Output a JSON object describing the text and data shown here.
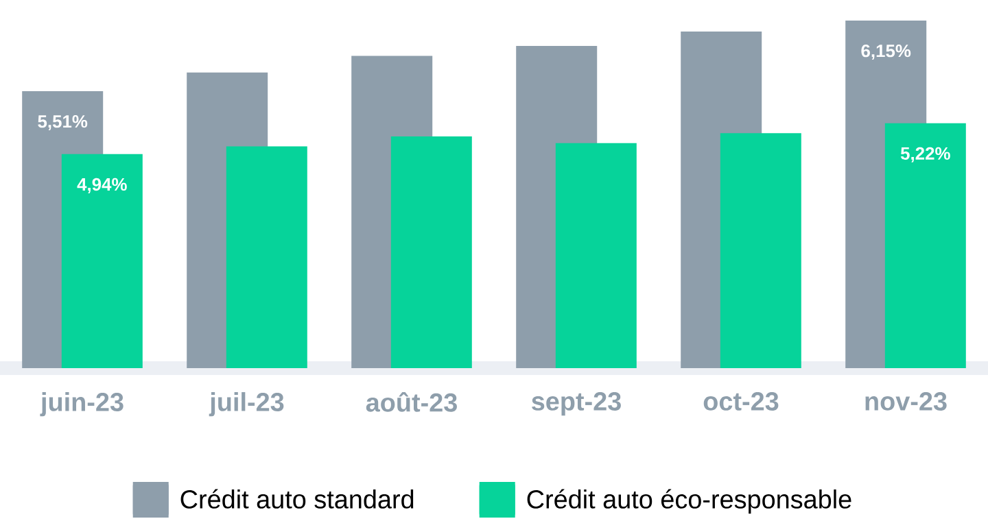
{
  "chart_data": {
    "type": "bar",
    "categories": [
      "juin-23",
      "juil-23",
      "août-23",
      "sept-23",
      "oct-23",
      "nov-23"
    ],
    "series": [
      {
        "name": "Crédit auto standard",
        "color": "#8e9eab",
        "values": [
          5.51,
          5.68,
          5.83,
          5.92,
          6.05,
          6.15
        ],
        "value_labels": [
          "5,51%",
          null,
          null,
          null,
          null,
          "6,15%"
        ]
      },
      {
        "name": "Crédit auto éco-responsable",
        "color": "#06d39a",
        "values": [
          4.94,
          5.01,
          5.1,
          5.04,
          5.13,
          5.22
        ],
        "value_labels": [
          "4,94%",
          null,
          null,
          null,
          null,
          "5,22%"
        ]
      }
    ],
    "ylim": [
      3,
      6.15
    ],
    "tick_labels": "x",
    "legend": "bottom"
  }
}
